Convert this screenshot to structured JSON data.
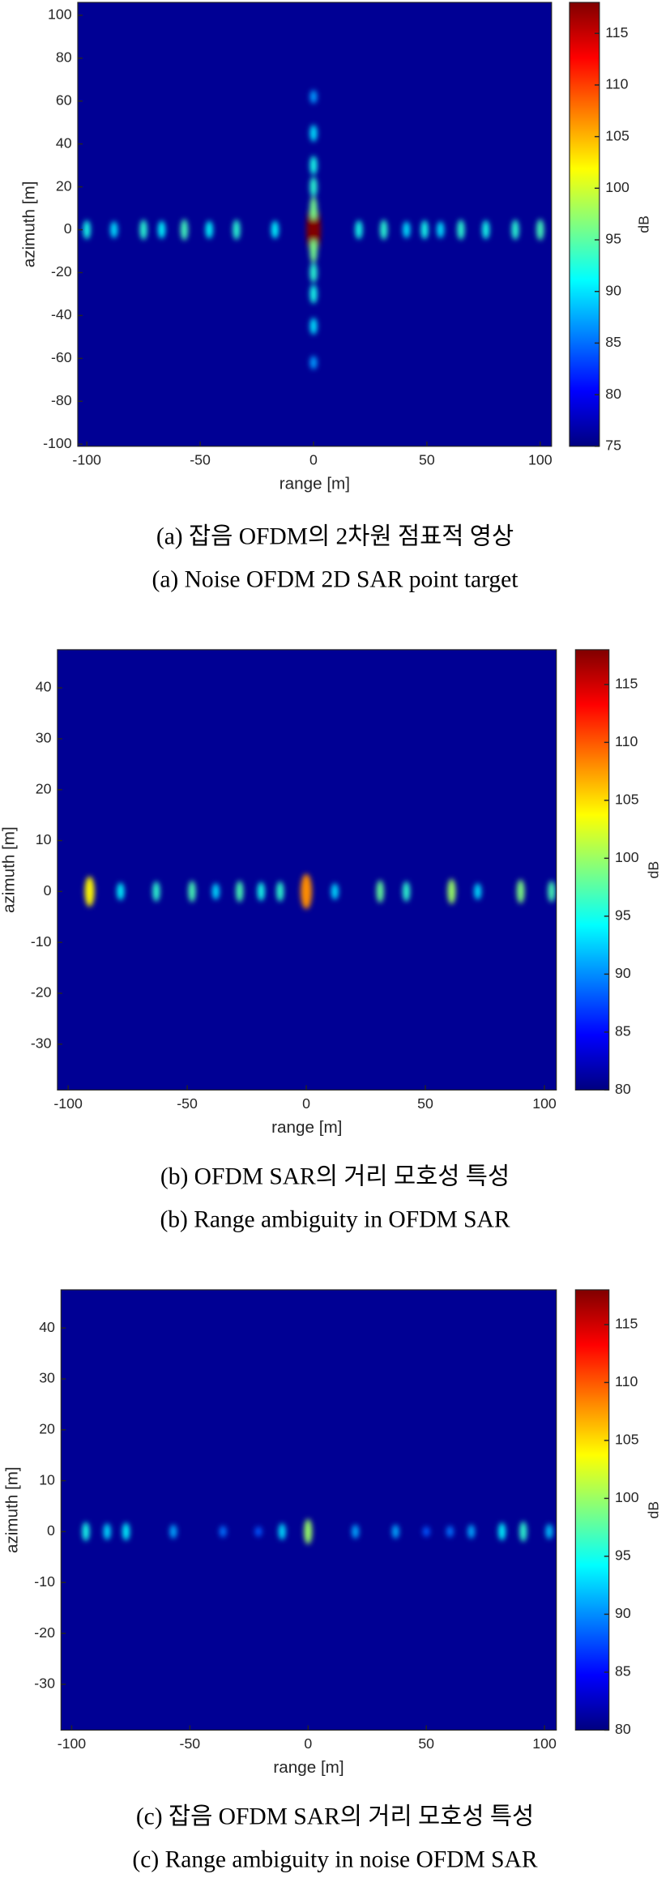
{
  "chart_data": [
    {
      "type": "heatmap",
      "caption_ko": "(a) 잡음 OFDM의 2차원 점표적 영상",
      "caption_en": "(a) Noise OFDM 2D SAR point target",
      "x_label": "range [m]",
      "y_label": "azimuth [m]",
      "colorbar_label": "dB",
      "xlim": [
        -104,
        105
      ],
      "ylim": [
        -101,
        106
      ],
      "xticks": [
        -100,
        -50,
        0,
        50,
        100
      ],
      "yticks": [
        -100,
        -80,
        -60,
        -40,
        -20,
        0,
        20,
        40,
        60,
        80,
        100
      ],
      "clim": [
        75,
        118
      ],
      "cticks": [
        75,
        80,
        85,
        90,
        95,
        100,
        105,
        110,
        115
      ],
      "spots": {
        "x": [
          0,
          -100,
          -88,
          -75,
          -67,
          -57,
          -46,
          -34,
          -17,
          20,
          31,
          41,
          49,
          56,
          65,
          76,
          89,
          100,
          0,
          0,
          0,
          0,
          0,
          0,
          0,
          0,
          0,
          0
        ],
        "y": [
          0,
          0,
          0,
          0,
          0,
          0,
          0,
          0,
          0,
          0,
          0,
          0,
          0,
          0,
          0,
          0,
          0,
          0,
          10,
          -10,
          20,
          -20,
          30,
          -30,
          45,
          -45,
          62,
          -62
        ],
        "values": [
          118,
          92,
          90,
          93,
          91,
          94,
          91,
          93,
          91,
          92,
          93,
          90,
          92,
          90,
          93,
          92,
          93,
          94,
          96,
          96,
          93,
          93,
          92,
          92,
          90,
          90,
          87,
          87
        ]
      }
    },
    {
      "type": "heatmap",
      "caption_ko": "(b) OFDM SAR의 거리 모호성 특성",
      "caption_en": "(b) Range ambiguity in OFDM SAR",
      "x_label": "range [m]",
      "y_label": "azimuth [m]",
      "colorbar_label": "dB",
      "xlim": [
        -104.5,
        105
      ],
      "ylim": [
        -39,
        47.5
      ],
      "xticks": [
        -100,
        -50,
        0,
        50,
        100
      ],
      "yticks": [
        -30,
        -20,
        -10,
        0,
        10,
        20,
        30,
        40
      ],
      "clim": [
        80,
        118
      ],
      "cticks": [
        80,
        85,
        90,
        95,
        100,
        105,
        110,
        115
      ],
      "spots": {
        "x": [
          -91,
          -78,
          -63,
          -48,
          -38,
          -28,
          -19,
          -11,
          0,
          12,
          31,
          42,
          61,
          72,
          90,
          103
        ],
        "y": [
          0,
          0,
          0,
          0,
          0,
          0,
          0,
          0,
          0,
          0,
          0,
          0,
          0,
          0,
          0,
          0
        ],
        "values": [
          104,
          94,
          96,
          97,
          93,
          97,
          95,
          96,
          108,
          93,
          98,
          96,
          100,
          93,
          99,
          97
        ]
      }
    },
    {
      "type": "heatmap",
      "caption_ko": "(c) 잡음 OFDM SAR의 거리 모호성 특성",
      "caption_en": "(c) Range ambiguity in noise OFDM SAR",
      "x_label": "range [m]",
      "y_label": "azimuth [m]",
      "colorbar_label": "dB",
      "xlim": [
        -104.5,
        105
      ],
      "ylim": [
        -39,
        47.5
      ],
      "xticks": [
        -100,
        -50,
        0,
        50,
        100
      ],
      "yticks": [
        -30,
        -20,
        -10,
        0,
        10,
        20,
        30,
        40
      ],
      "clim": [
        80,
        118
      ],
      "cticks": [
        80,
        85,
        90,
        95,
        100,
        105,
        110,
        115
      ],
      "spots": {
        "x": [
          -94,
          -85,
          -77,
          -57,
          -36,
          -21,
          -11,
          0,
          20,
          37,
          50,
          60,
          69,
          82,
          91,
          102
        ],
        "y": [
          0,
          0,
          0,
          0,
          0,
          0,
          0,
          0,
          0,
          0,
          0,
          0,
          0,
          0,
          0,
          0
        ],
        "values": [
          95,
          93,
          94,
          91,
          89,
          88,
          93,
          100,
          91,
          91,
          88,
          89,
          91,
          94,
          96,
          92
        ]
      }
    }
  ]
}
